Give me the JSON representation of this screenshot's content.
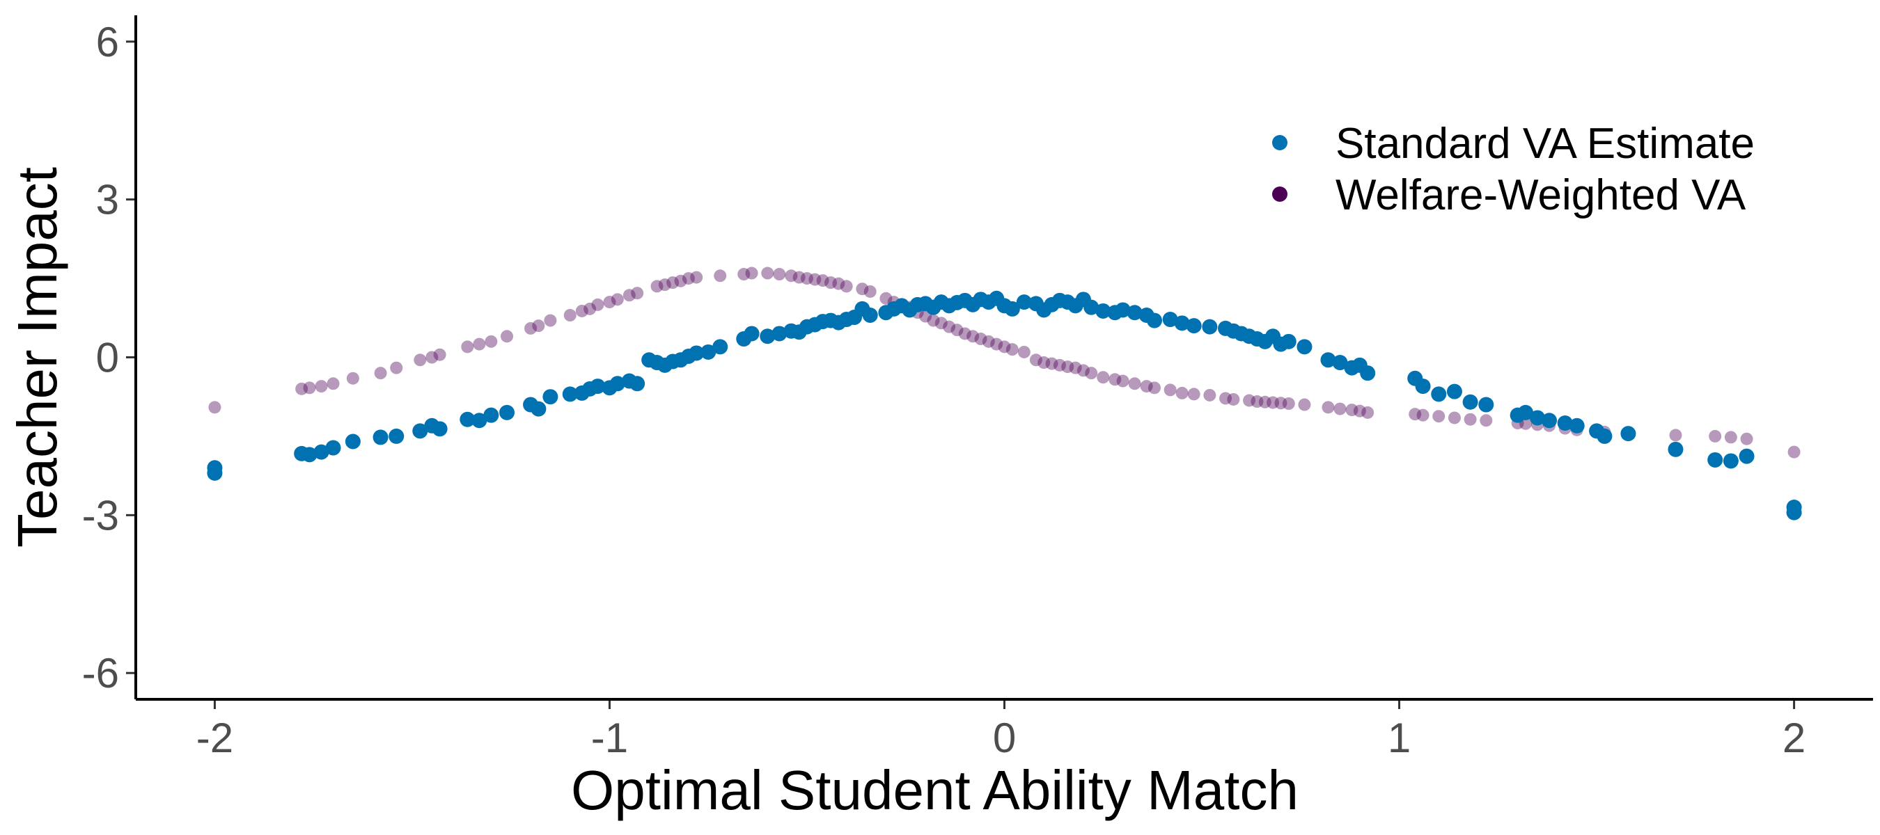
{
  "chart_data": {
    "type": "scatter",
    "title": "",
    "xlabel": "Optimal Student Ability Match",
    "ylabel": "Teacher Impact",
    "xlim": [
      -2.2,
      2.2
    ],
    "ylim": [
      -6.5,
      6.5
    ],
    "x_ticks": [
      -2,
      -1,
      0,
      1,
      2
    ],
    "x_tick_labels": [
      "-2",
      "-1",
      "0",
      "1",
      "2"
    ],
    "y_ticks": [
      6,
      3,
      0,
      -3,
      -6
    ],
    "y_tick_labels": [
      "6",
      "3",
      "0",
      "-3",
      "-6"
    ],
    "grid": false,
    "legend_position": "top-right",
    "series": [
      {
        "name": "Standard VA Estimate",
        "color": "#0072B2",
        "opacity": 1.0,
        "points": [
          [
            -2.0,
            -2.1
          ],
          [
            -2.0,
            -2.2
          ],
          [
            -1.78,
            -1.83
          ],
          [
            -1.76,
            -1.85
          ],
          [
            -1.73,
            -1.8
          ],
          [
            -1.7,
            -1.72
          ],
          [
            -1.65,
            -1.6
          ],
          [
            -1.58,
            -1.52
          ],
          [
            -1.54,
            -1.5
          ],
          [
            -1.48,
            -1.4
          ],
          [
            -1.45,
            -1.3
          ],
          [
            -1.43,
            -1.36
          ],
          [
            -1.36,
            -1.18
          ],
          [
            -1.33,
            -1.2
          ],
          [
            -1.3,
            -1.1
          ],
          [
            -1.26,
            -1.05
          ],
          [
            -1.2,
            -0.9
          ],
          [
            -1.18,
            -0.98
          ],
          [
            -1.15,
            -0.75
          ],
          [
            -1.1,
            -0.7
          ],
          [
            -1.07,
            -0.68
          ],
          [
            -1.05,
            -0.6
          ],
          [
            -1.03,
            -0.55
          ],
          [
            -1.0,
            -0.58
          ],
          [
            -0.98,
            -0.5
          ],
          [
            -0.95,
            -0.45
          ],
          [
            -0.93,
            -0.5
          ],
          [
            -0.9,
            -0.05
          ],
          [
            -0.88,
            -0.1
          ],
          [
            -0.86,
            -0.15
          ],
          [
            -0.84,
            -0.08
          ],
          [
            -0.82,
            -0.05
          ],
          [
            -0.8,
            0.02
          ],
          [
            -0.78,
            0.08
          ],
          [
            -0.75,
            0.1
          ],
          [
            -0.72,
            0.2
          ],
          [
            -0.66,
            0.35
          ],
          [
            -0.64,
            0.45
          ],
          [
            -0.6,
            0.4
          ],
          [
            -0.57,
            0.45
          ],
          [
            -0.54,
            0.5
          ],
          [
            -0.52,
            0.48
          ],
          [
            -0.5,
            0.58
          ],
          [
            -0.48,
            0.62
          ],
          [
            -0.46,
            0.68
          ],
          [
            -0.44,
            0.7
          ],
          [
            -0.42,
            0.66
          ],
          [
            -0.4,
            0.72
          ],
          [
            -0.38,
            0.76
          ],
          [
            -0.36,
            0.92
          ],
          [
            -0.34,
            0.8
          ],
          [
            -0.3,
            0.85
          ],
          [
            -0.28,
            0.92
          ],
          [
            -0.26,
            0.98
          ],
          [
            -0.24,
            0.9
          ],
          [
            -0.22,
            1.0
          ],
          [
            -0.2,
            1.02
          ],
          [
            -0.18,
            0.95
          ],
          [
            -0.16,
            1.05
          ],
          [
            -0.14,
            0.98
          ],
          [
            -0.12,
            1.04
          ],
          [
            -0.1,
            1.08
          ],
          [
            -0.08,
            1.0
          ],
          [
            -0.06,
            1.1
          ],
          [
            -0.04,
            1.05
          ],
          [
            -0.02,
            1.12
          ],
          [
            0.0,
            0.98
          ],
          [
            0.02,
            0.92
          ],
          [
            0.05,
            1.05
          ],
          [
            0.08,
            1.02
          ],
          [
            0.1,
            0.9
          ],
          [
            0.12,
            1.0
          ],
          [
            0.14,
            1.08
          ],
          [
            0.16,
            1.05
          ],
          [
            0.18,
            0.98
          ],
          [
            0.2,
            1.1
          ],
          [
            0.22,
            0.95
          ],
          [
            0.25,
            0.88
          ],
          [
            0.28,
            0.85
          ],
          [
            0.3,
            0.9
          ],
          [
            0.33,
            0.85
          ],
          [
            0.36,
            0.8
          ],
          [
            0.38,
            0.7
          ],
          [
            0.42,
            0.72
          ],
          [
            0.45,
            0.65
          ],
          [
            0.48,
            0.6
          ],
          [
            0.52,
            0.58
          ],
          [
            0.56,
            0.55
          ],
          [
            0.58,
            0.5
          ],
          [
            0.6,
            0.45
          ],
          [
            0.62,
            0.4
          ],
          [
            0.64,
            0.35
          ],
          [
            0.66,
            0.3
          ],
          [
            0.68,
            0.4
          ],
          [
            0.7,
            0.25
          ],
          [
            0.72,
            0.3
          ],
          [
            0.76,
            0.2
          ],
          [
            0.82,
            -0.05
          ],
          [
            0.85,
            -0.1
          ],
          [
            0.88,
            -0.2
          ],
          [
            0.9,
            -0.15
          ],
          [
            0.92,
            -0.3
          ],
          [
            1.04,
            -0.4
          ],
          [
            1.06,
            -0.55
          ],
          [
            1.1,
            -0.7
          ],
          [
            1.14,
            -0.65
          ],
          [
            1.18,
            -0.85
          ],
          [
            1.22,
            -0.9
          ],
          [
            1.3,
            -1.1
          ],
          [
            1.32,
            -1.05
          ],
          [
            1.35,
            -1.15
          ],
          [
            1.38,
            -1.2
          ],
          [
            1.42,
            -1.25
          ],
          [
            1.45,
            -1.3
          ],
          [
            1.5,
            -1.4
          ],
          [
            1.52,
            -1.5
          ],
          [
            1.58,
            -1.45
          ],
          [
            1.7,
            -1.75
          ],
          [
            1.8,
            -1.95
          ],
          [
            1.84,
            -1.97
          ],
          [
            1.88,
            -1.88
          ],
          [
            2.0,
            -2.85
          ],
          [
            2.0,
            -2.95
          ]
        ]
      },
      {
        "name": "Welfare-Weighted VA",
        "color": "#4B0055",
        "opacity": 0.4,
        "points": [
          [
            -2.0,
            -0.95
          ],
          [
            -1.78,
            -0.6
          ],
          [
            -1.76,
            -0.58
          ],
          [
            -1.73,
            -0.55
          ],
          [
            -1.7,
            -0.5
          ],
          [
            -1.65,
            -0.4
          ],
          [
            -1.58,
            -0.3
          ],
          [
            -1.54,
            -0.2
          ],
          [
            -1.48,
            -0.05
          ],
          [
            -1.45,
            0.0
          ],
          [
            -1.43,
            0.05
          ],
          [
            -1.36,
            0.2
          ],
          [
            -1.33,
            0.25
          ],
          [
            -1.3,
            0.3
          ],
          [
            -1.26,
            0.4
          ],
          [
            -1.2,
            0.55
          ],
          [
            -1.18,
            0.6
          ],
          [
            -1.15,
            0.7
          ],
          [
            -1.1,
            0.8
          ],
          [
            -1.07,
            0.88
          ],
          [
            -1.05,
            0.92
          ],
          [
            -1.03,
            1.0
          ],
          [
            -1.0,
            1.05
          ],
          [
            -0.98,
            1.1
          ],
          [
            -0.95,
            1.18
          ],
          [
            -0.93,
            1.22
          ],
          [
            -0.88,
            1.35
          ],
          [
            -0.86,
            1.38
          ],
          [
            -0.84,
            1.42
          ],
          [
            -0.82,
            1.45
          ],
          [
            -0.8,
            1.5
          ],
          [
            -0.78,
            1.52
          ],
          [
            -0.72,
            1.55
          ],
          [
            -0.66,
            1.58
          ],
          [
            -0.64,
            1.6
          ],
          [
            -0.6,
            1.6
          ],
          [
            -0.57,
            1.58
          ],
          [
            -0.54,
            1.55
          ],
          [
            -0.52,
            1.52
          ],
          [
            -0.5,
            1.5
          ],
          [
            -0.48,
            1.48
          ],
          [
            -0.46,
            1.46
          ],
          [
            -0.44,
            1.42
          ],
          [
            -0.42,
            1.4
          ],
          [
            -0.4,
            1.35
          ],
          [
            -0.36,
            1.3
          ],
          [
            -0.34,
            1.25
          ],
          [
            -0.3,
            1.12
          ],
          [
            -0.28,
            1.05
          ],
          [
            -0.26,
            1.0
          ],
          [
            -0.24,
            0.95
          ],
          [
            -0.22,
            0.85
          ],
          [
            -0.2,
            0.78
          ],
          [
            -0.18,
            0.7
          ],
          [
            -0.16,
            0.65
          ],
          [
            -0.14,
            0.58
          ],
          [
            -0.12,
            0.52
          ],
          [
            -0.1,
            0.45
          ],
          [
            -0.08,
            0.4
          ],
          [
            -0.06,
            0.35
          ],
          [
            -0.04,
            0.3
          ],
          [
            -0.02,
            0.25
          ],
          [
            0.0,
            0.2
          ],
          [
            0.02,
            0.15
          ],
          [
            0.05,
            0.1
          ],
          [
            0.08,
            -0.05
          ],
          [
            0.1,
            -0.1
          ],
          [
            0.12,
            -0.12
          ],
          [
            0.14,
            -0.15
          ],
          [
            0.16,
            -0.18
          ],
          [
            0.18,
            -0.2
          ],
          [
            0.2,
            -0.25
          ],
          [
            0.22,
            -0.3
          ],
          [
            0.25,
            -0.38
          ],
          [
            0.28,
            -0.42
          ],
          [
            0.3,
            -0.45
          ],
          [
            0.33,
            -0.5
          ],
          [
            0.36,
            -0.55
          ],
          [
            0.38,
            -0.58
          ],
          [
            0.42,
            -0.62
          ],
          [
            0.45,
            -0.68
          ],
          [
            0.48,
            -0.7
          ],
          [
            0.52,
            -0.72
          ],
          [
            0.56,
            -0.78
          ],
          [
            0.58,
            -0.8
          ],
          [
            0.62,
            -0.82
          ],
          [
            0.64,
            -0.84
          ],
          [
            0.66,
            -0.85
          ],
          [
            0.68,
            -0.86
          ],
          [
            0.7,
            -0.87
          ],
          [
            0.72,
            -0.88
          ],
          [
            0.76,
            -0.9
          ],
          [
            0.82,
            -0.95
          ],
          [
            0.85,
            -0.98
          ],
          [
            0.88,
            -1.0
          ],
          [
            0.9,
            -1.02
          ],
          [
            0.92,
            -1.05
          ],
          [
            1.04,
            -1.08
          ],
          [
            1.06,
            -1.1
          ],
          [
            1.1,
            -1.12
          ],
          [
            1.14,
            -1.15
          ],
          [
            1.18,
            -1.18
          ],
          [
            1.22,
            -1.2
          ],
          [
            1.3,
            -1.25
          ],
          [
            1.32,
            -1.26
          ],
          [
            1.35,
            -1.28
          ],
          [
            1.38,
            -1.3
          ],
          [
            1.42,
            -1.35
          ],
          [
            1.45,
            -1.38
          ],
          [
            1.5,
            -1.4
          ],
          [
            1.52,
            -1.42
          ],
          [
            1.58,
            -1.45
          ],
          [
            1.7,
            -1.48
          ],
          [
            1.8,
            -1.5
          ],
          [
            1.84,
            -1.52
          ],
          [
            1.88,
            -1.55
          ],
          [
            2.0,
            -1.8
          ]
        ]
      }
    ]
  }
}
